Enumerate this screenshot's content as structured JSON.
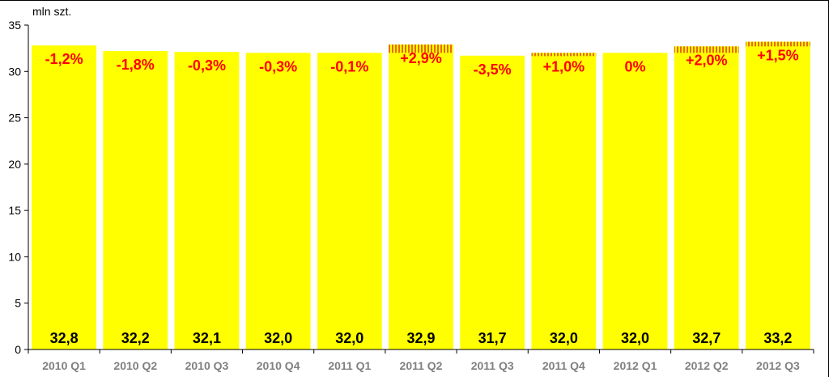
{
  "chart_data": {
    "type": "bar",
    "unit_label": "mln szt.",
    "categories": [
      "2010 Q1",
      "2010 Q2",
      "2010 Q3",
      "2010 Q4",
      "2011 Q1",
      "2011 Q2",
      "2011 Q3",
      "2011 Q4",
      "2012 Q1",
      "2012 Q2",
      "2012 Q3"
    ],
    "values": [
      32.8,
      32.2,
      32.1,
      32.0,
      32.0,
      32.9,
      31.7,
      32.0,
      32.0,
      32.7,
      33.2
    ],
    "value_labels": [
      "32,8",
      "32,2",
      "32,1",
      "32,0",
      "32,0",
      "32,9",
      "31,7",
      "32,0",
      "32,0",
      "32,7",
      "33,2"
    ],
    "change_labels": [
      "-1,2%",
      "-1,8%",
      "-0,3%",
      "-0,3%",
      "-0,1%",
      "+2,9%",
      "-3,5%",
      "+1,0%",
      "0%",
      "+2,0%",
      "+1,5%"
    ],
    "increase_flags": [
      false,
      false,
      false,
      false,
      false,
      true,
      false,
      true,
      false,
      true,
      true
    ],
    "ylim": [
      0,
      35
    ],
    "yticks": [
      0,
      5,
      10,
      15,
      20,
      25,
      30,
      35
    ],
    "grid": false,
    "colors": {
      "bar": "#FFFF00",
      "increase_hatch": "#E36C0A",
      "change_label": "#FF0000",
      "value_label": "#000000",
      "tick_label": "#808080",
      "axis": "#000000"
    }
  }
}
